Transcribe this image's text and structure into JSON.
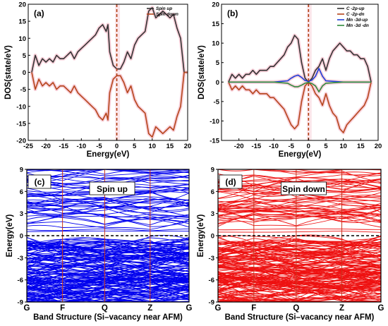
{
  "chart_data": [
    {
      "panel": "(a)",
      "type": "line",
      "xlabel": "Energy(eV)",
      "ylabel": "DOS(state/eV)",
      "xlim": [
        -25,
        20
      ],
      "ylim": [
        -20,
        20
      ],
      "xticks": [
        -25,
        -20,
        -15,
        -10,
        -5,
        0,
        5,
        10,
        15,
        20
      ],
      "yticks": [
        -20,
        -15,
        -10,
        -5,
        0,
        5,
        10,
        15,
        20
      ],
      "fermi_level": 0,
      "legend": "top-right",
      "series": [
        {
          "name": "Spin up",
          "color": "#333333",
          "x": [
            -24,
            -23,
            -22,
            -21,
            -20,
            -19,
            -18,
            -17,
            -16,
            -15,
            -14,
            -13,
            -12,
            -11,
            -10,
            -9,
            -8,
            -7,
            -6,
            -5,
            -4,
            -3,
            -2.5,
            -2,
            -1,
            0,
            1,
            2,
            3,
            4,
            5,
            6,
            7,
            8,
            9,
            10,
            11,
            12,
            13,
            14,
            15,
            16,
            17,
            18,
            19,
            20
          ],
          "y": [
            0,
            5,
            2,
            4,
            3,
            4,
            3,
            5,
            4,
            4,
            5,
            6,
            4,
            6,
            7,
            8,
            9,
            10,
            11,
            13,
            14,
            12,
            14,
            6,
            2,
            1,
            1,
            3,
            6,
            4,
            8,
            10,
            11,
            12,
            18,
            19,
            16,
            17,
            18,
            17,
            16,
            17,
            13,
            10,
            0,
            0
          ]
        },
        {
          "name": "Spin down",
          "color": "#b5451b",
          "x": [
            -24,
            -23,
            -22,
            -21,
            -20,
            -19,
            -18,
            -17,
            -16,
            -15,
            -14,
            -13,
            -12,
            -11,
            -10,
            -9,
            -8,
            -7,
            -6,
            -5,
            -4,
            -3,
            -2.5,
            -2,
            -1,
            0,
            1,
            2,
            3,
            4,
            5,
            6,
            7,
            8,
            9,
            10,
            11,
            12,
            13,
            14,
            15,
            16,
            17,
            18,
            19,
            20
          ],
          "y": [
            0,
            -5,
            -2,
            -4,
            -3,
            -4,
            -3,
            -5,
            -4,
            -4,
            -5,
            -6,
            -4,
            -6,
            -7,
            -8,
            -9,
            -10,
            -11,
            -13,
            -14,
            -12,
            -14,
            -6,
            -2,
            -1,
            -1,
            -3,
            -6,
            -4,
            -8,
            -10,
            -11,
            -12,
            -18,
            -19,
            -16,
            -17,
            -18,
            -17,
            -16,
            -17,
            -13,
            -10,
            0,
            0
          ]
        }
      ]
    },
    {
      "panel": "(b)",
      "type": "line",
      "xlabel": "Energy(eV)",
      "ylabel": "DOS(state/eV)",
      "xlim": [
        -25,
        20
      ],
      "ylim": [
        -15,
        20
      ],
      "xticks": [
        -20,
        -15,
        -10,
        -5,
        0,
        5,
        10,
        15,
        20
      ],
      "yticks": [
        -15,
        -10,
        -5,
        0,
        5,
        10,
        15,
        20
      ],
      "fermi_level": 0,
      "legend": "top-right",
      "series": [
        {
          "name": "C -2p-up",
          "color": "#333333",
          "x": [
            -23,
            -22,
            -21,
            -20,
            -19,
            -18,
            -17,
            -16,
            -15,
            -14,
            -13,
            -12,
            -11,
            -10,
            -9,
            -8,
            -7,
            -6,
            -5,
            -4,
            -3,
            -2,
            -1,
            0,
            1,
            2,
            3,
            4,
            5,
            6,
            7,
            8,
            9,
            10,
            11,
            12,
            13,
            14,
            15,
            16,
            17,
            18
          ],
          "y": [
            0,
            2,
            1,
            2,
            1,
            2,
            2,
            3,
            2,
            3,
            3,
            3,
            4,
            4,
            5,
            6,
            7,
            9,
            10,
            12,
            11,
            5,
            1,
            0,
            1,
            3,
            4,
            6,
            3,
            6,
            8,
            9,
            10,
            9,
            8,
            8,
            7,
            7,
            6,
            6,
            4,
            0
          ]
        },
        {
          "name": "C -2p-dn",
          "color": "#b5451b",
          "x": [
            -23,
            -22,
            -21,
            -20,
            -19,
            -18,
            -17,
            -16,
            -15,
            -14,
            -13,
            -12,
            -11,
            -10,
            -9,
            -8,
            -7,
            -6,
            -5,
            -4,
            -3,
            -2,
            -1,
            0,
            1,
            2,
            3,
            4,
            5,
            6,
            7,
            8,
            9,
            10,
            11,
            12,
            13,
            14,
            15,
            16,
            17,
            18
          ],
          "y": [
            0,
            -2,
            -1,
            -2,
            -1,
            -2,
            -2,
            -3,
            -2,
            -3,
            -3,
            -3,
            -4,
            -4,
            -5,
            -6,
            -7,
            -9,
            -11,
            -12,
            -11,
            -5,
            -1,
            0,
            -1,
            -3,
            -4,
            -6,
            -3,
            -6,
            -8,
            -9,
            -12,
            -13,
            -11,
            -10,
            -9,
            -8,
            -7,
            -6,
            -4,
            0
          ]
        },
        {
          "name": "Mn -3d-up",
          "color": "#1f3fd9",
          "x": [
            -23,
            -10,
            -6,
            -5,
            -4,
            -3,
            -2,
            -1,
            0,
            1,
            2,
            3,
            4,
            5,
            10,
            18
          ],
          "y": [
            0,
            0,
            0.3,
            1,
            1.5,
            1.8,
            1.2,
            0.4,
            0.2,
            0.5,
            1.5,
            3.5,
            1.5,
            0.3,
            0,
            0
          ]
        },
        {
          "name": "Mn -3d -dn",
          "color": "#2e8b3c",
          "x": [
            -23,
            -10,
            -6,
            -5,
            -4,
            -3,
            -2,
            -1,
            0,
            1,
            2,
            3,
            4,
            5,
            10,
            18
          ],
          "y": [
            0,
            0,
            -0.3,
            -0.8,
            -1.2,
            -1.2,
            -0.8,
            -0.3,
            -0.1,
            -0.4,
            -1,
            -2.5,
            -1,
            -0.3,
            0,
            0
          ]
        }
      ]
    },
    {
      "panel": "(c)",
      "type": "line",
      "annotation": "Spin up",
      "xlabel": "Band Structure (Si–vacancy near AFM)",
      "ylabel": "Energy(eV)",
      "ylim": [
        -9,
        9
      ],
      "yticks": [
        -9,
        -6,
        -3,
        0,
        3,
        6,
        9
      ],
      "kpoints": [
        "G",
        "F",
        "Q",
        "Z",
        "G"
      ],
      "band_color": "#0000ee",
      "fermi_level": 0
    },
    {
      "panel": "(d)",
      "type": "line",
      "annotation": "Spin down",
      "xlabel": "Band Structure (Si–vacancy near AFM)",
      "ylabel": "Energy(eV)",
      "ylim": [
        -9,
        9
      ],
      "yticks": [
        -9,
        -6,
        -3,
        0,
        3,
        6,
        9
      ],
      "kpoints": [
        "G",
        "F",
        "Q",
        "Z",
        "G"
      ],
      "band_color": "#ee1111",
      "fermi_level": 0
    }
  ]
}
